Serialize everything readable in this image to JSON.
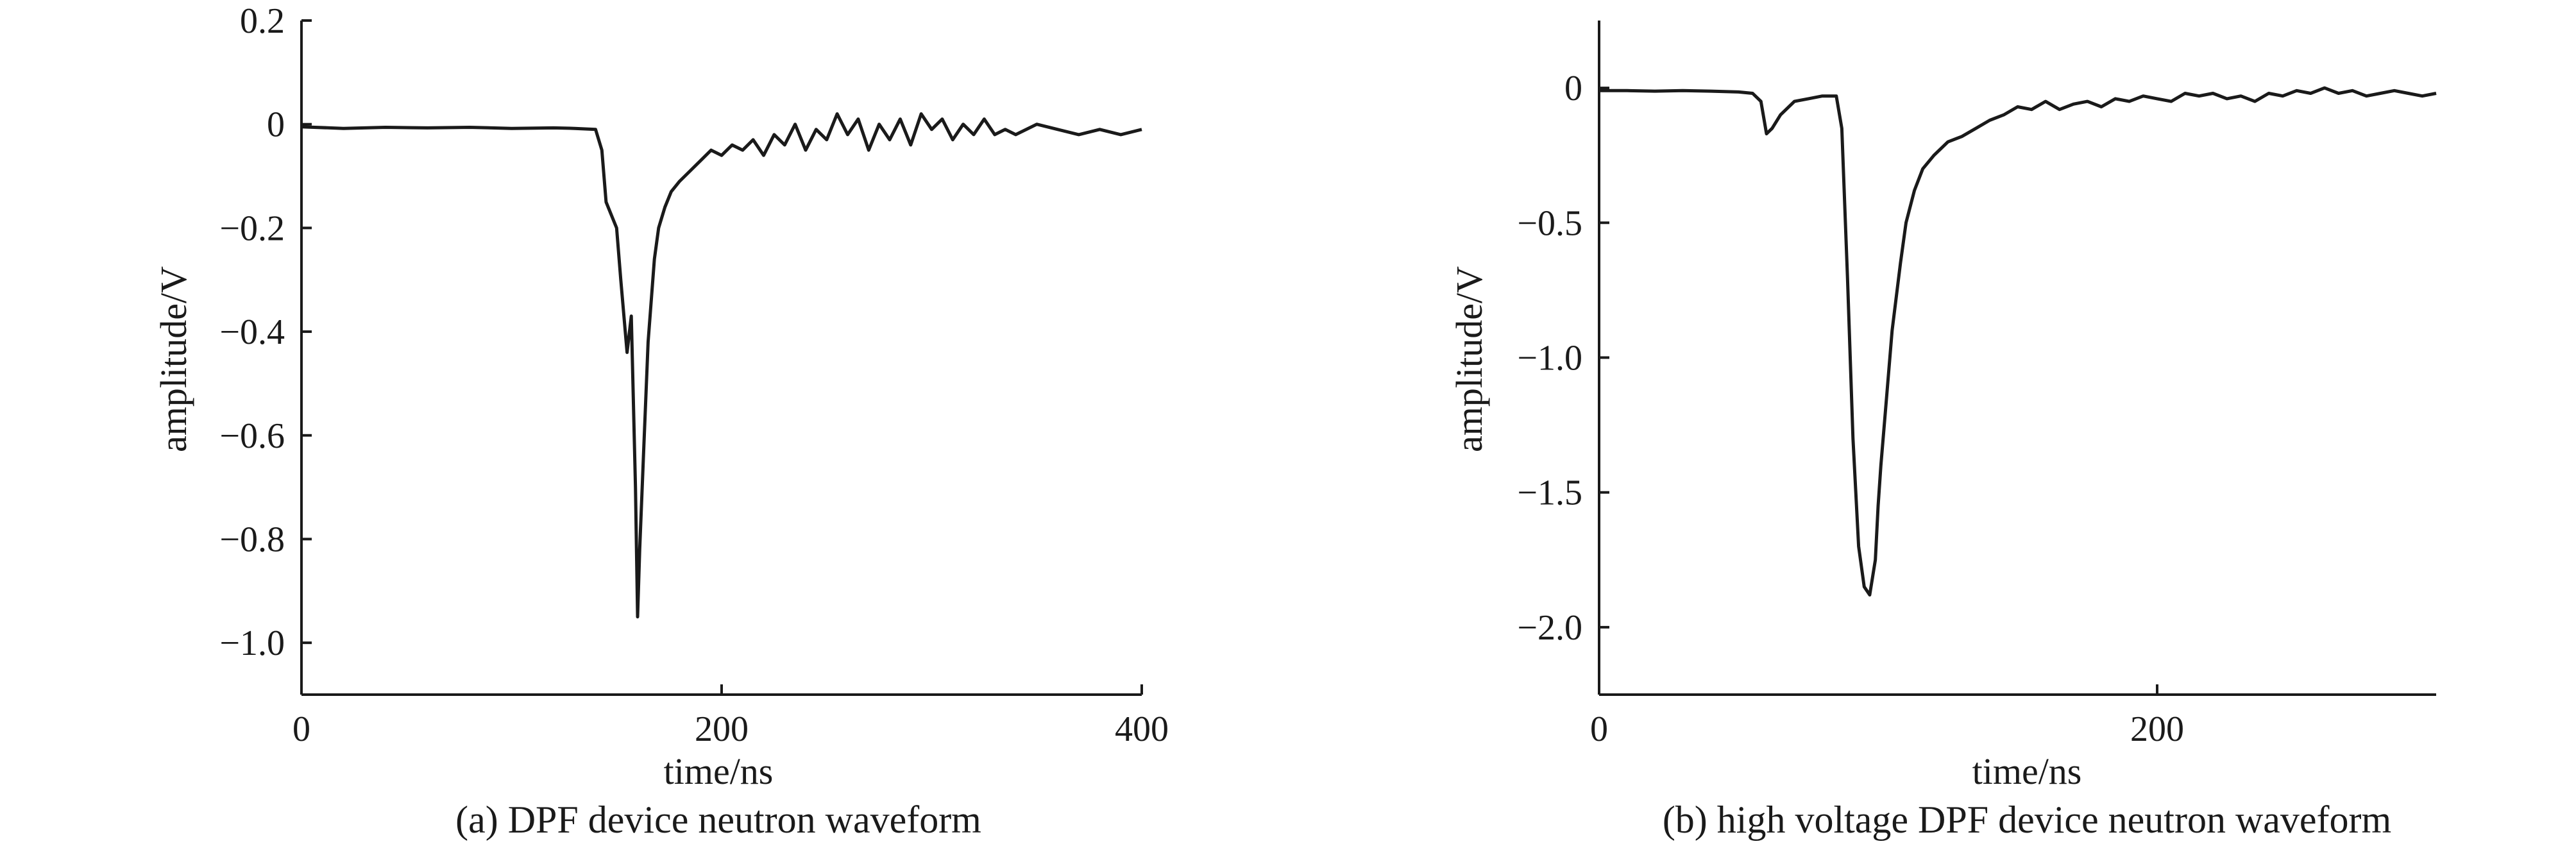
{
  "chart_data": [
    {
      "type": "line",
      "caption": "(a) DPF device neutron waveform",
      "xlabel": "time/ns",
      "ylabel": "amplitude/V",
      "xlim": [
        0,
        400
      ],
      "ylim": [
        -1.1,
        0.2
      ],
      "xticks": [
        {
          "value": 0,
          "label": "0"
        },
        {
          "value": 200,
          "label": "200"
        },
        {
          "value": 400,
          "label": "400"
        }
      ],
      "yticks": [
        {
          "value": 0.2,
          "label": "0.2"
        },
        {
          "value": 0,
          "label": "0"
        },
        {
          "value": -0.2,
          "label": "−0.2"
        },
        {
          "value": -0.4,
          "label": "−0.4"
        },
        {
          "value": -0.6,
          "label": "−0.6"
        },
        {
          "value": -0.8,
          "label": "−0.8"
        },
        {
          "value": -1.0,
          "label": "−1.0"
        }
      ],
      "grid": false,
      "series": [
        {
          "x": [
            0,
            20,
            40,
            60,
            80,
            100,
            120,
            130,
            140,
            143,
            145,
            148,
            150,
            152,
            155,
            157,
            159,
            160,
            161,
            163,
            165,
            168,
            170,
            173,
            176,
            180,
            185,
            190,
            195,
            200,
            205,
            210,
            215,
            220,
            225,
            230,
            235,
            240,
            245,
            250,
            255,
            260,
            265,
            270,
            275,
            280,
            285,
            290,
            295,
            300,
            305,
            310,
            315,
            320,
            325,
            330,
            335,
            340,
            350,
            360,
            370,
            380,
            390,
            400
          ],
          "y": [
            -0.005,
            -0.008,
            -0.006,
            -0.007,
            -0.006,
            -0.008,
            -0.007,
            -0.008,
            -0.01,
            -0.05,
            -0.15,
            -0.18,
            -0.2,
            -0.3,
            -0.44,
            -0.37,
            -0.7,
            -0.95,
            -0.82,
            -0.62,
            -0.42,
            -0.26,
            -0.2,
            -0.16,
            -0.13,
            -0.11,
            -0.09,
            -0.07,
            -0.05,
            -0.06,
            -0.04,
            -0.05,
            -0.03,
            -0.06,
            -0.02,
            -0.04,
            0.0,
            -0.05,
            -0.01,
            -0.03,
            0.02,
            -0.02,
            0.01,
            -0.05,
            0.0,
            -0.03,
            0.01,
            -0.04,
            0.02,
            -0.01,
            0.01,
            -0.03,
            0.0,
            -0.02,
            0.01,
            -0.02,
            -0.01,
            -0.02,
            0.0,
            -0.01,
            -0.02,
            -0.01,
            -0.02,
            -0.01
          ]
        }
      ]
    },
    {
      "type": "line",
      "caption": "(b) high voltage DPF device neutron waveform",
      "xlabel": "time/ns",
      "ylabel": "amplitude/V",
      "xlim": [
        0,
        300
      ],
      "ylim": [
        -2.25,
        0.25
      ],
      "xticks": [
        {
          "value": 0,
          "label": "0"
        },
        {
          "value": 200,
          "label": "200"
        }
      ],
      "yticks": [
        {
          "value": 0,
          "label": "0"
        },
        {
          "value": -0.5,
          "label": "−0.5"
        },
        {
          "value": -1.0,
          "label": "−1.0"
        },
        {
          "value": -1.5,
          "label": "−1.5"
        },
        {
          "value": -2.0,
          "label": "−2.0"
        }
      ],
      "grid": false,
      "series": [
        {
          "x": [
            0,
            10,
            20,
            30,
            40,
            50,
            55,
            58,
            60,
            62,
            65,
            70,
            75,
            80,
            85,
            87,
            89,
            91,
            93,
            95,
            97,
            99,
            100,
            101,
            103,
            105,
            108,
            110,
            113,
            116,
            120,
            125,
            130,
            135,
            140,
            145,
            150,
            155,
            160,
            165,
            170,
            175,
            180,
            185,
            190,
            195,
            200,
            205,
            210,
            215,
            220,
            225,
            230,
            235,
            240,
            245,
            250,
            255,
            260,
            265,
            270,
            275,
            280,
            285,
            290,
            295,
            300
          ],
          "y": [
            -0.01,
            -0.01,
            -0.012,
            -0.01,
            -0.012,
            -0.015,
            -0.02,
            -0.05,
            -0.17,
            -0.15,
            -0.1,
            -0.05,
            -0.04,
            -0.03,
            -0.03,
            -0.15,
            -0.7,
            -1.3,
            -1.7,
            -1.85,
            -1.88,
            -1.75,
            -1.55,
            -1.4,
            -1.15,
            -0.9,
            -0.65,
            -0.5,
            -0.38,
            -0.3,
            -0.25,
            -0.2,
            -0.18,
            -0.15,
            -0.12,
            -0.1,
            -0.07,
            -0.08,
            -0.05,
            -0.08,
            -0.06,
            -0.05,
            -0.07,
            -0.04,
            -0.05,
            -0.03,
            -0.04,
            -0.05,
            -0.02,
            -0.03,
            -0.02,
            -0.04,
            -0.03,
            -0.05,
            -0.02,
            -0.03,
            -0.01,
            -0.02,
            0.0,
            -0.02,
            -0.01,
            -0.03,
            -0.02,
            -0.01,
            -0.02,
            -0.03,
            -0.02
          ]
        }
      ]
    }
  ]
}
